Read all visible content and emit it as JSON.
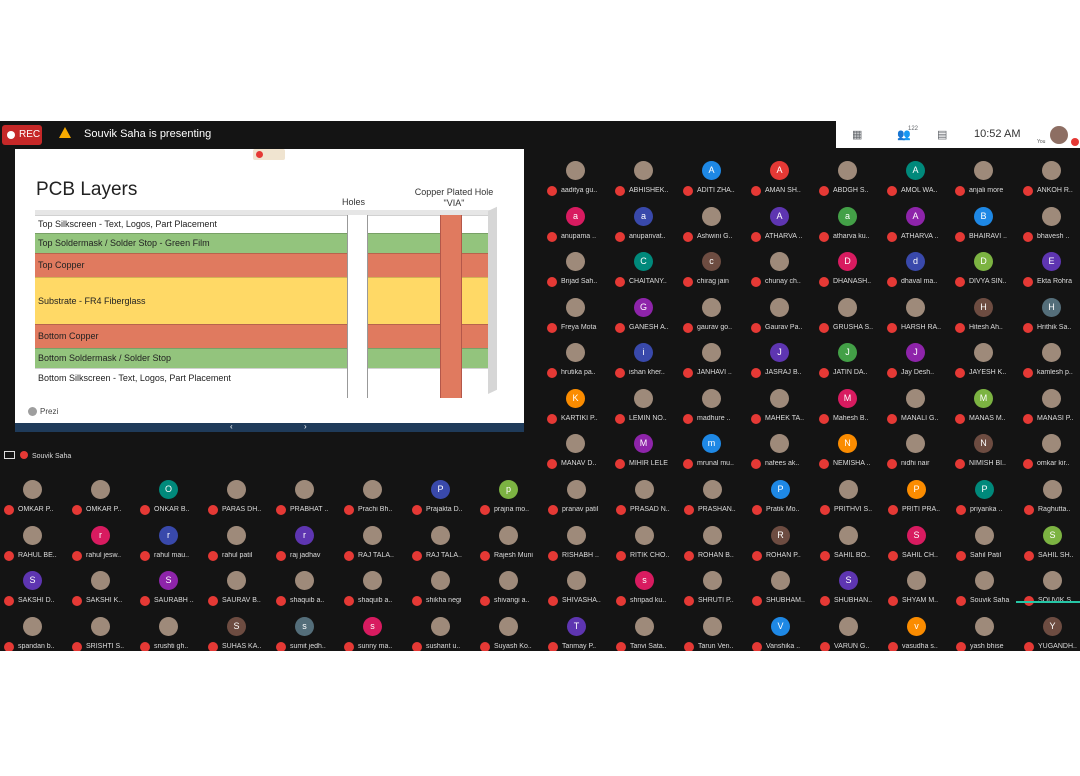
{
  "recording": {
    "label": "REC"
  },
  "presenter_banner": "Souvik Saha is presenting",
  "toolbar": {
    "participants_count": "122",
    "time": "10:52 AM",
    "you_label": "You"
  },
  "slide": {
    "title": "PCB Layers",
    "col_holes": "Holes",
    "col_via": "Copper Plated Hole \"VIA\"",
    "layers": [
      {
        "label": "Top Silkscreen - Text, Logos, Part Placement",
        "color": "#ffffff"
      },
      {
        "label": "Top Soldermask / Solder Stop - Green Film",
        "color": "#93c47d"
      },
      {
        "label": "Top Copper",
        "color": "#e07a5f"
      },
      {
        "label": "Substrate - FR4 Fiberglass",
        "color": "#ffd966"
      },
      {
        "label": "Bottom Copper",
        "color": "#e07a5f"
      },
      {
        "label": "Bottom Soldermask / Solder Stop",
        "color": "#93c47d"
      },
      {
        "label": "Bottom Silkscreen - Text, Logos, Part Placement",
        "color": "#ffffff"
      }
    ],
    "brand": "Prezi",
    "prev": "‹",
    "next": "›"
  },
  "presenter_tile_name": "Souvik Saha",
  "participants_right": [
    "aaditya gu..",
    "ABHISHEK..",
    "ADITI ZHA..",
    "AMAN SH..",
    "ABDGH S..",
    "AMOL WA..",
    "anjali more",
    "ANKOH R..",
    "anupama ..",
    "anupanvat..",
    "Ashwini G..",
    "ATHARVA ..",
    "atharva ku..",
    "ATHARVA ..",
    "BHAIRAVI ..",
    "bhavesh ..",
    "Brijad Sah..",
    "CHAITANY..",
    "chirag jain",
    "chunay ch..",
    "DHANASH..",
    "dhaval ma..",
    "DIVYA SIN..",
    "Ekta Rohra",
    "Freya Mota",
    "GANESH A..",
    "gaurav go..",
    "Gaurav Pa..",
    "GRUSHA S..",
    "HARSH RA..",
    "Hitesh Ah..",
    "Hrithik Sa..",
    "hrutika pa..",
    "ishan kher..",
    "JANHAVI ..",
    "JASRAJ B..",
    "JATIN DA..",
    "Jay Desh..",
    "JAYESH K..",
    "kamlesh p..",
    "KARTIKI P..",
    "LEMIN NO..",
    "madhure ..",
    "MAHEK TA..",
    "Mahesh B..",
    "MANALI G..",
    "MANAS M..",
    "MANASI P..",
    "MANAV D..",
    "MIHIR LELE",
    "mrunal mu..",
    "nafees ak..",
    "NEMISHA ..",
    "nidhi nair",
    "NIMISH BI..",
    "omkar kir.."
  ],
  "participants_bottom": [
    "OMKAR P..",
    "OMKAR P..",
    "ONKAR B..",
    "PARAS DH..",
    "PRABHAT ..",
    "Prachi Bh..",
    "Prajakta D..",
    "prajna mo..",
    "pranav patil",
    "PRASAD N..",
    "PRASHAN..",
    "Pratik Mo..",
    "PRITHVI S..",
    "PRITI PRA..",
    "priyanka ..",
    "Raghutta..",
    "RAHUL BE..",
    "rahul jesw..",
    "rahul mau..",
    "rahul patil",
    "raj jadhav",
    "RAJ TALA..",
    "RAJ TALA..",
    "Rajesh Muni",
    "RISHABH ..",
    "RITIK CHO..",
    "ROHAN B..",
    "ROHAN P..",
    "SAHIL BO..",
    "SAHIL CH..",
    "Sahil Patil",
    "SAHIL SH..",
    "SAKSHI D..",
    "SAKSHI K..",
    "SAURABH ..",
    "SAURAV B..",
    "shaquib a..",
    "shaquib a..",
    "shikha negi",
    "shivangi a..",
    "SHIVASHA..",
    "shripad ku..",
    "SHRUTI P..",
    "SHUBHAM..",
    "SHUBHAN..",
    "SHYAM M..",
    "Souvik Saha",
    "SOUVIK S..",
    "spandan b..",
    "SRISHTI S..",
    "srushti gh..",
    "SUHAS KA..",
    "sumit jedh..",
    "sunny ma..",
    "sushant u..",
    "Suyash Ko..",
    "Tanmay P..",
    "Tanvi Sata..",
    "Tarun Ven..",
    "Vanshika ..",
    "VARUN G..",
    "vasudha s..",
    "yash bhise",
    "YUGANDH.."
  ],
  "avatar_letters": {
    "ADITI ZHA..": "A",
    "AMAN SH..": "A",
    "AMOL WA..": "A",
    "anupama ..": "a",
    "anupanvat..": "a",
    "ATHARVA ..": "A",
    "atharva ku..": "a",
    "BHAIRAVI ..": "B",
    "CHAITANY..": "C",
    "chirag jain": "c",
    "DHANASH..": "D",
    "dhaval ma..": "d",
    "DIVYA SIN..": "D",
    "Ekta Rohra": "E",
    "GANESH A..": "G",
    "Hitesh Ah..": "H",
    "Hrithik Sa..": "H",
    "ishan kher..": "i",
    "JASRAJ B..": "J",
    "JATIN DA..": "J",
    "Jay Desh..": "J",
    "KARTIKI P..": "K",
    "Mahesh B..": "M",
    "MANAS M..": "M",
    "MIHIR LELE": "M",
    "mrunal mu..": "m",
    "NEMISHA ..": "N",
    "NIMISH BI..": "N",
    "ONKAR B..": "O",
    "Prajakta D..": "P",
    "prajna mo..": "p",
    "Pratik Mo..": "P",
    "PRITI PRA..": "P",
    "priyanka ..": "P",
    "rahul mau..": "r",
    "raj jadhav": "r",
    "ROHAN P..": "R",
    "SAHIL CH..": "S",
    "SAHIL SH..": "S",
    "SAKSHI D..": "S",
    "SAURABH ..": "S",
    "shripad ku..": "s",
    "SHUBHAN..": "S",
    "SUHAS KA..": "S",
    "sumit jedh..": "s",
    "sunny ma..": "s",
    "Tanmay P..": "T",
    "Vanshika ..": "V",
    "vasudha s..": "v",
    "YUGANDH..": "Y",
    "rahul jesw..": "r"
  },
  "colors": {
    "recording": "#c62828",
    "mic_muted": "#e53935",
    "speaking": "#26c6a6",
    "background": "#141414"
  }
}
